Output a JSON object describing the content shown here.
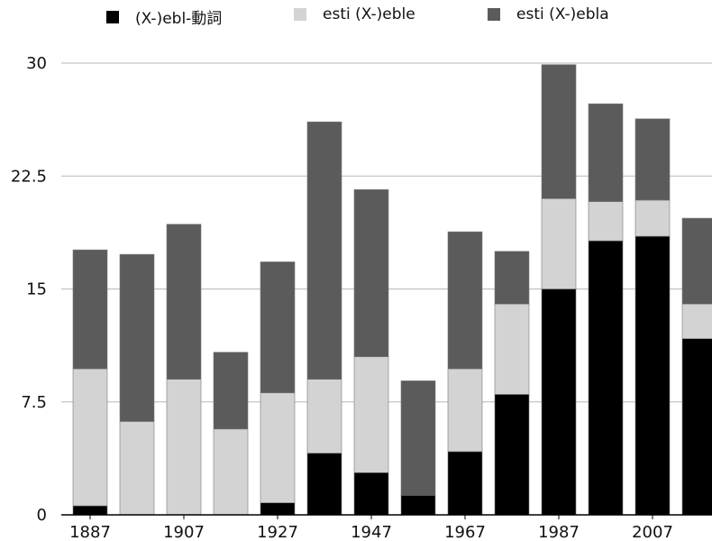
{
  "chart_data": {
    "type": "bar",
    "stacked": true,
    "title": "",
    "xlabel": "",
    "ylabel": "",
    "ylim": [
      0,
      30
    ],
    "yticks": [
      "0",
      "7.5",
      "15",
      "22.5",
      "30"
    ],
    "ytick_values": [
      0,
      7.5,
      15,
      22.5,
      30
    ],
    "categories": [
      "1887",
      "1897",
      "1907",
      "1917",
      "1927",
      "1937",
      "1947",
      "1957",
      "1967",
      "1977",
      "1987",
      "1997",
      "2007",
      "2017"
    ],
    "xtick_labels": [
      "1887",
      "1907",
      "1927",
      "1947",
      "1967",
      "1987",
      "2007"
    ],
    "grid": true,
    "legend_position": "top",
    "series": [
      {
        "name": "(X-)ebl-動詞",
        "color": "#000000",
        "values": [
          0.6,
          0,
          0,
          0,
          0.8,
          4.1,
          2.8,
          1.3,
          4.2,
          8.0,
          15.0,
          18.2,
          18.5,
          11.7
        ]
      },
      {
        "name": "esti (X-)eble",
        "color": "#d3d3d3",
        "values": [
          9.1,
          6.2,
          9.0,
          5.7,
          7.3,
          4.9,
          7.7,
          0,
          5.5,
          6.0,
          6.0,
          2.6,
          2.4,
          2.3
        ]
      },
      {
        "name": "esti (X-)ebla",
        "color": "#5b5b5b",
        "values": [
          7.9,
          11.1,
          10.3,
          5.1,
          8.7,
          17.1,
          11.1,
          7.6,
          9.1,
          3.5,
          8.9,
          6.5,
          5.4,
          5.7
        ]
      }
    ]
  }
}
